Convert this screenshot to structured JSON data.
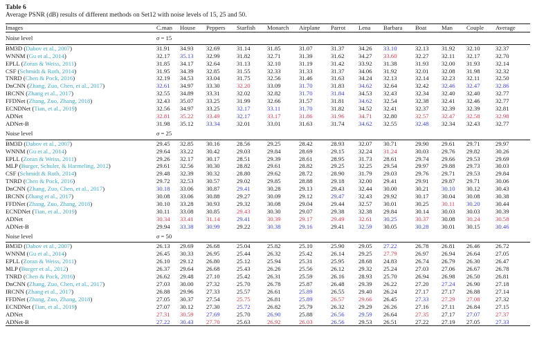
{
  "page": {
    "table_label": "Table 6",
    "caption": "Average PSNR (dB) results of different methods on Set12 with noise levels of 15, 25 and 50."
  },
  "table": {
    "images_header": "Images",
    "noise_level_label": "Noise level",
    "columns": [
      "C.man",
      "House",
      "Peppers",
      "Starfish",
      "Monarch",
      "Airplane",
      "Parrot",
      "Lena",
      "Barbara",
      "Boat",
      "Man",
      "Couple",
      "Average"
    ],
    "colors": {
      "best": "#cc3a4e",
      "second_best": "#3b3ecd",
      "citation_link": "#3fa9c5",
      "rule": "#1a1a1a",
      "text": "#1c1c1c"
    },
    "mark_legend": {
      "r": "best (red)",
      "b": "second best (blue)",
      "k": "normal (black)"
    },
    "sections": [
      {
        "sigma_label": "σ = 15",
        "rows": [
          {
            "method": "BM3D",
            "citation": "Dabov et al., 2007",
            "values": [
              "31.91",
              "34.93",
              "32.69",
              "31.14",
              "31.85",
              "31.07",
              "31.37",
              "34.26",
              "33.10",
              "32.13",
              "31.92",
              "32.10",
              "32.37"
            ],
            "marks": "kkkkkkkkbkkkk"
          },
          {
            "method": "WNNM",
            "citation": "Gu et al., 2014",
            "values": [
              "32.17",
              "35.13",
              "32.99",
              "31.82",
              "32.71",
              "31.39",
              "31.62",
              "34.27",
              "33.60",
              "32.27",
              "32.11",
              "32.17",
              "32.70"
            ],
            "marks": "kbkkkkkkrkkkk"
          },
          {
            "method": "EPLL",
            "citation": "Zoran & Weiss, 2011",
            "values": [
              "31.85",
              "34.17",
              "32.64",
              "31.13",
              "32.10",
              "31.19",
              "31.42",
              "33.92",
              "31.38",
              "31.93",
              "32.00",
              "31.93",
              "32.14"
            ],
            "marks": "kkkkkkkkkkkkk"
          },
          {
            "method": "CSF",
            "citation": "Schmidt & Roth, 2014",
            "values": [
              "31.95",
              "34.39",
              "32.85",
              "31.55",
              "32.33",
              "31.33",
              "31.37",
              "34.06",
              "31.92",
              "32.01",
              "32.08",
              "31.98",
              "32.32"
            ],
            "marks": "kkkkkkkkkkkkk"
          },
          {
            "method": "TNRD",
            "citation": "Chen & Pock, 2016",
            "values": [
              "32.19",
              "34.53",
              "33.04",
              "31.75",
              "32.56",
              "31.46",
              "31.63",
              "34.24",
              "32.13",
              "32.14",
              "32.23",
              "32.11",
              "32.50"
            ],
            "marks": "kkkkkkkkkkkkk"
          },
          {
            "method": "DnCNN",
            "citation": "Zhang, Zuo, Chen, et al., 2017",
            "values": [
              "32.61",
              "34.97",
              "33.30",
              "32.20",
              "33.09",
              "31.70",
              "31.83",
              "34.62",
              "32.64",
              "32.42",
              "32.46",
              "32.47",
              "32.86"
            ],
            "marks": "bkkrkbkbkkbbb"
          },
          {
            "method": "IRCNN",
            "citation": "Zhang et al., 2017",
            "values": [
              "32.55",
              "34.89",
              "33.31",
              "32.02",
              "32.82",
              "31.70",
              "31.84",
              "34.53",
              "32.43",
              "32.34",
              "32.40",
              "32.40",
              "32.77"
            ],
            "marks": "kkkkkbbkkkkkk"
          },
          {
            "method": "FFDNet",
            "citation": "Zhang, Zuo, Zhang, 2018",
            "values": [
              "32.43",
              "35.07",
              "33.25",
              "31.99",
              "32.66",
              "31.57",
              "31.81",
              "34.62",
              "32.54",
              "32.38",
              "32.41",
              "32.46",
              "32.77"
            ],
            "marks": "kkkkkkkbkkkkk"
          },
          {
            "method": "ECNDNet",
            "citation": "Tian, et al., 2019",
            "values": [
              "32.56",
              "34.97",
              "33.25",
              "32.17",
              "33.11",
              "31.70",
              "31.82",
              "34.52",
              "32.41",
              "32.37",
              "32.39",
              "32.39",
              "32.81"
            ],
            "marks": "kkkbbbkkkkkkk"
          },
          {
            "method": "ADNet",
            "citation": null,
            "values": [
              "32.81",
              "35.22",
              "33.49",
              "32.17",
              "33.17",
              "31.86",
              "31.96",
              "34.71",
              "32.80",
              "32.57",
              "32.47",
              "32.58",
              "32.98"
            ],
            "marks": "rrrbrrrrkrrrr"
          },
          {
            "method": "ADNet-B",
            "citation": null,
            "values": [
              "31.98",
              "35.12",
              "33.34",
              "32.01",
              "33.01",
              "31.63",
              "31.74",
              "34.62",
              "32.55",
              "32.48",
              "32.34",
              "32.43",
              "32.77"
            ],
            "marks": "kkbkkkkbkbkkk"
          }
        ]
      },
      {
        "sigma_label": "σ = 25",
        "rows": [
          {
            "method": "BM3D",
            "citation": "Dabov et al., 2007",
            "values": [
              "29.45",
              "32.85",
              "30.16",
              "28.56",
              "29.25",
              "28.42",
              "28.93",
              "32.07",
              "30.71",
              "29.90",
              "29.61",
              "29.71",
              "29.97"
            ],
            "marks": "kkkkkkkkkkkkk"
          },
          {
            "method": "WNNM",
            "citation": "Gu et al., 2014",
            "values": [
              "29.64",
              "33.22",
              "30.42",
              "29.03",
              "29.84",
              "28.69",
              "29.15",
              "32.24",
              "31.24",
              "30.03",
              "29.76",
              "29.82",
              "30.26"
            ],
            "marks": "kkkkkkkkrkkkk"
          },
          {
            "method": "EPLL",
            "citation": "Zoran & Weiss, 2011",
            "values": [
              "29.26",
              "32.17",
              "30.17",
              "28.51",
              "29.39",
              "28.61",
              "28.95",
              "31.73",
              "28.61",
              "29.74",
              "29.66",
              "29.53",
              "29.69"
            ],
            "marks": "kkkkkkkkkkkkk"
          },
          {
            "method": "MLP",
            "citation": "Burger, Schuler, & Harmeling, 2012",
            "values": [
              "29.61",
              "32.56",
              "30.30",
              "28.82",
              "29.61",
              "28.82",
              "29.25",
              "32.25",
              "29.54",
              "29.97",
              "29.88",
              "29.73",
              "30.03"
            ],
            "marks": "kkkkkkkkkkkkk"
          },
          {
            "method": "CSF",
            "citation": "Schmidt & Roth, 2014",
            "values": [
              "29.48",
              "32.39",
              "30.32",
              "28.80",
              "29.62",
              "28.72",
              "28.90",
              "31.79",
              "29.03",
              "29.76",
              "29.71",
              "29.53",
              "29.84"
            ],
            "marks": "kkkkkkkkkkkkk"
          },
          {
            "method": "TNRD",
            "citation": "Chen & Pock, 2016",
            "values": [
              "29.72",
              "32.53",
              "30.57",
              "29.02",
              "29.85",
              "28.88",
              "29.18",
              "32.00",
              "29.41",
              "29.91",
              "29.87",
              "29.71",
              "30.06"
            ],
            "marks": "kkkkkkkkkkkkk"
          },
          {
            "method": "DnCNN",
            "citation": "Zhang, Zuo, Chen, et al., 2017",
            "values": [
              "30.18",
              "33.06",
              "30.87",
              "29.41",
              "30.28",
              "29.13",
              "29.43",
              "32.44",
              "30.00",
              "30.21",
              "30.10",
              "30.12",
              "30.43"
            ],
            "marks": "bkkbkkkkkkbkk"
          },
          {
            "method": "IRCNN",
            "citation": "Zhang et al., 2017",
            "values": [
              "30.08",
              "33.06",
              "30.88",
              "29.27",
              "30.09",
              "29.12",
              "29.47",
              "32.43",
              "29.92",
              "30.17",
              "30.04",
              "30.08",
              "30.38"
            ],
            "marks": "kkkkkkbkkkkkk"
          },
          {
            "method": "FFDNet",
            "citation": "Zhang, Zuo, Zhang, 2018",
            "values": [
              "30.10",
              "33.28",
              "30.93",
              "29.32",
              "30.08",
              "29.04",
              "29.44",
              "32.57",
              "30.01",
              "30.25",
              "30.11",
              "30.20",
              "30.44"
            ],
            "marks": "kkkkkkkkkkrbk"
          },
          {
            "method": "ECNDNet",
            "citation": "Tian, et al., 2019",
            "values": [
              "30.11",
              "33.08",
              "30.85",
              "29.43",
              "30.30",
              "29.07",
              "29.38",
              "32.38",
              "29.84",
              "30.14",
              "30.03",
              "30.03",
              "30.39"
            ],
            "marks": "kkkrkkkkkkkkk"
          },
          {
            "method": "ADNet",
            "citation": null,
            "values": [
              "30.34",
              "33.41",
              "31.14",
              "29.41",
              "30.39",
              "29.17",
              "29.49",
              "32.61",
              "30.25",
              "30.37",
              "30.08",
              "30.24",
              "30.58"
            ],
            "marks": "rrrbrrrrbrkrr"
          },
          {
            "method": "ADNet-B",
            "citation": null,
            "values": [
              "29.94",
              "33.38",
              "30.99",
              "29.22",
              "30.38",
              "29.16",
              "29.41",
              "32.59",
              "30.05",
              "30.28",
              "30.01",
              "30.15",
              "30.46"
            ],
            "marks": "kbbkbbkbkbkkb"
          }
        ]
      },
      {
        "sigma_label": "σ = 50",
        "rows": [
          {
            "method": "BM3D",
            "citation": "Dabov et al., 2007",
            "values": [
              "26.13",
              "29.69",
              "26.68",
              "25.04",
              "25.82",
              "25.10",
              "25.90",
              "29.05",
              "27.22",
              "26.78",
              "26.81",
              "26.46",
              "26.72"
            ],
            "marks": "kkkkkkkkbkkkk"
          },
          {
            "method": "WNNM",
            "citation": "Gu et al., 2014",
            "values": [
              "26.45",
              "30.33",
              "26.95",
              "25.44",
              "26.32",
              "25.42",
              "26.14",
              "29.25",
              "27.79",
              "26.97",
              "26.94",
              "26.64",
              "27.05"
            ],
            "marks": "kkkkkkkkrkkkk"
          },
          {
            "method": "EPLL",
            "citation": "Zoran & Weiss, 2011",
            "values": [
              "26.10",
              "29.12",
              "26.80",
              "25.12",
              "25.94",
              "25.31",
              "25.95",
              "28.68",
              "24.83",
              "26.74",
              "26.79",
              "26.30",
              "26.47"
            ],
            "marks": "kkkkkkkkkkkkk"
          },
          {
            "method": "MLP",
            "citation": "Burger et al., 2012",
            "values": [
              "26.37",
              "29.64",
              "26.68",
              "25.43",
              "26.26",
              "25.56",
              "26.12",
              "29.32",
              "25.24",
              "27.03",
              "27.06",
              "26.67",
              "26.78"
            ],
            "marks": "kkkkkkkkkkkkk"
          },
          {
            "method": "TNRD",
            "citation": "Chen & Pock, 2016",
            "values": [
              "26.62",
              "29.48",
              "27.10",
              "25.42",
              "26.31",
              "25.59",
              "26.16",
              "28.93",
              "25.70",
              "26.94",
              "26.98",
              "26.50",
              "26.81"
            ],
            "marks": "kkkkkkkkkkkkk"
          },
          {
            "method": "DnCNN",
            "citation": "Zhang, Zuo, Chen, et al., 2017",
            "values": [
              "27.03",
              "30.00",
              "27.32",
              "25.70",
              "26.78",
              "25.87",
              "26.48",
              "29.39",
              "26.22",
              "27.20",
              "27.24",
              "26.90",
              "27.18"
            ],
            "marks": "kkkkkkkkkkbkk"
          },
          {
            "method": "IRCNN",
            "citation": "Zhang et al., 2017",
            "values": [
              "26.88",
              "29.96",
              "27.33",
              "25.57",
              "26.61",
              "25.89",
              "26.55",
              "29.40",
              "26.24",
              "27.17",
              "27.17",
              "26.88",
              "27.14"
            ],
            "marks": "kkkkkbkkkkkkk"
          },
          {
            "method": "FFDNet",
            "citation": "Zhang, Zuo, Zhang, 2018",
            "values": [
              "27.05",
              "30.37",
              "27.54",
              "25.75",
              "26.81",
              "25.89",
              "26.57",
              "29.66",
              "26.45",
              "27.33",
              "27.29",
              "27.08",
              "27.32"
            ],
            "marks": "kkkrkbrrkbrrk"
          },
          {
            "method": "ECNDNet",
            "citation": "Tian, et al., 2019",
            "values": [
              "27.07",
              "30.12",
              "27.30",
              "25.72",
              "26.82",
              "25.79",
              "26.32",
              "29.29",
              "26.26",
              "27.16",
              "27.11",
              "26.84",
              "27.15"
            ],
            "marks": "kkkbkkkkkkkkk"
          },
          {
            "method": "ADNet",
            "citation": null,
            "values": [
              "27.31",
              "30.59",
              "27.69",
              "25.70",
              "26.90",
              "25.88",
              "26.56",
              "29.59",
              "26.64",
              "27.35",
              "27.17",
              "27.07",
              "27.37"
            ],
            "marks": "rrbkbkbbkrkbr"
          },
          {
            "method": "ADNet-B",
            "citation": null,
            "values": [
              "27.22",
              "30.43",
              "27.70",
              "25.63",
              "26.92",
              "26.03",
              "26.56",
              "29.53",
              "26.51",
              "27.22",
              "27.19",
              "27.05",
              "27.33"
            ],
            "marks": "bbrkrrbkkkkkb"
          }
        ]
      }
    ]
  }
}
